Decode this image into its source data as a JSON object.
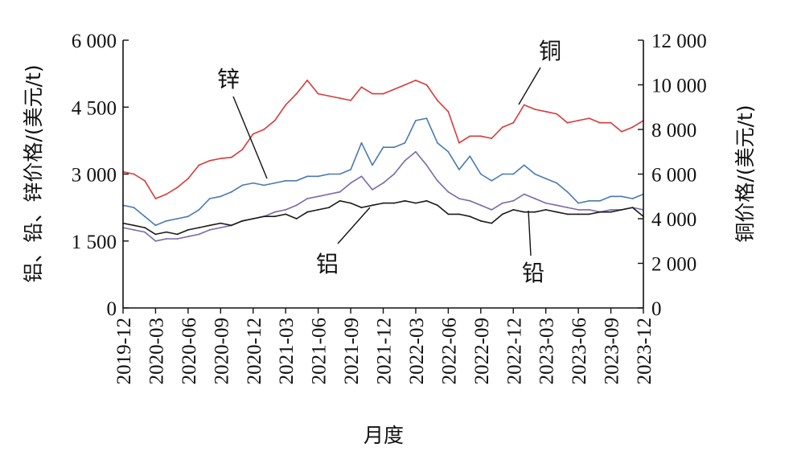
{
  "chart_data": {
    "type": "line",
    "xlabel": "月度",
    "ylabel_left": "铝、铅、锌价格/(美元/t)",
    "ylabel_right": "铜价格/(美元/t)",
    "ylim_left": [
      0,
      6000
    ],
    "ylim_right": [
      0,
      12000
    ],
    "yticks_left": [
      {
        "value": 0,
        "label": "0"
      },
      {
        "value": 1500,
        "label": "1 500"
      },
      {
        "value": 3000,
        "label": "3 000"
      },
      {
        "value": 4500,
        "label": "4 500"
      },
      {
        "value": 6000,
        "label": "6 000"
      }
    ],
    "yticks_right": [
      {
        "value": 0,
        "label": "0"
      },
      {
        "value": 2000,
        "label": "2 000"
      },
      {
        "value": 4000,
        "label": "4 000"
      },
      {
        "value": 6000,
        "label": "6 000"
      },
      {
        "value": 8000,
        "label": "8 000"
      },
      {
        "value": 10000,
        "label": "10 000"
      },
      {
        "value": 12000,
        "label": "12 000"
      }
    ],
    "grid": false,
    "x": [
      "2019-12",
      "2020-01",
      "2020-02",
      "2020-03",
      "2020-04",
      "2020-05",
      "2020-06",
      "2020-07",
      "2020-08",
      "2020-09",
      "2020-10",
      "2020-11",
      "2020-12",
      "2021-01",
      "2021-02",
      "2021-03",
      "2021-04",
      "2021-05",
      "2021-06",
      "2021-07",
      "2021-08",
      "2021-09",
      "2021-10",
      "2021-11",
      "2021-12",
      "2022-01",
      "2022-02",
      "2022-03",
      "2022-04",
      "2022-05",
      "2022-06",
      "2022-07",
      "2022-08",
      "2022-09",
      "2022-10",
      "2022-11",
      "2022-12",
      "2023-01",
      "2023-02",
      "2023-03",
      "2023-04",
      "2023-05",
      "2023-06",
      "2023-07",
      "2023-08",
      "2023-09",
      "2023-10",
      "2023-11",
      "2023-12"
    ],
    "xtick_labels": [
      "2019-12",
      "2020-03",
      "2020-06",
      "2020-09",
      "2020-12",
      "2021-03",
      "2021-06",
      "2021-09",
      "2021-12",
      "2022-03",
      "2022-06",
      "2022-09",
      "2022-12",
      "2023-03",
      "2023-06",
      "2023-09",
      "2023-12"
    ],
    "series": [
      {
        "name": "铜",
        "axis": "right",
        "color": "#d93a3a",
        "values": [
          6100,
          6000,
          5700,
          4900,
          5100,
          5400,
          5800,
          6400,
          6600,
          6700,
          6750,
          7100,
          7800,
          8000,
          8400,
          9100,
          9600,
          10200,
          9600,
          9500,
          9400,
          9300,
          9900,
          9600,
          9600,
          9800,
          10000,
          10200,
          10000,
          9300,
          8800,
          7400,
          7700,
          7700,
          7600,
          8100,
          8300,
          9100,
          8900,
          8800,
          8700,
          8300,
          8400,
          8500,
          8300,
          8300,
          7900,
          8100,
          8400
        ]
      },
      {
        "name": "锌",
        "axis": "left",
        "color": "#4a7ab0",
        "values": [
          2300,
          2250,
          2050,
          1850,
          1950,
          2000,
          2050,
          2200,
          2450,
          2500,
          2600,
          2750,
          2800,
          2750,
          2800,
          2850,
          2850,
          2950,
          2950,
          3000,
          3000,
          3100,
          3700,
          3200,
          3600,
          3600,
          3700,
          4200,
          4250,
          3700,
          3500,
          3100,
          3400,
          3000,
          2850,
          3000,
          3000,
          3200,
          3000,
          2900,
          2800,
          2600,
          2350,
          2400,
          2400,
          2500,
          2500,
          2450,
          2550
        ]
      },
      {
        "name": "铝",
        "axis": "left",
        "color": "#7b68a6",
        "values": [
          1800,
          1750,
          1700,
          1500,
          1550,
          1550,
          1600,
          1650,
          1750,
          1800,
          1850,
          1950,
          2000,
          2050,
          2150,
          2200,
          2300,
          2450,
          2500,
          2550,
          2600,
          2800,
          2950,
          2650,
          2800,
          3000,
          3300,
          3500,
          3200,
          2850,
          2600,
          2450,
          2400,
          2300,
          2200,
          2350,
          2400,
          2550,
          2450,
          2350,
          2300,
          2250,
          2200,
          2200,
          2150,
          2200,
          2200,
          2250,
          2200
        ]
      },
      {
        "name": "铅",
        "axis": "left",
        "color": "#1a1a1a",
        "values": [
          1900,
          1850,
          1800,
          1650,
          1700,
          1650,
          1750,
          1800,
          1850,
          1900,
          1850,
          1950,
          2000,
          2050,
          2050,
          2100,
          2000,
          2150,
          2200,
          2250,
          2400,
          2350,
          2250,
          2300,
          2350,
          2350,
          2400,
          2350,
          2400,
          2300,
          2100,
          2100,
          2050,
          1950,
          1900,
          2100,
          2200,
          2150,
          2150,
          2200,
          2150,
          2100,
          2100,
          2100,
          2150,
          2150,
          2200,
          2250,
          2050
        ]
      }
    ],
    "annotations": [
      {
        "text": "锌",
        "series": "锌"
      },
      {
        "text": "铜",
        "series": "铜"
      },
      {
        "text": "铝",
        "series": "铝"
      },
      {
        "text": "铅",
        "series": "铅"
      }
    ]
  }
}
